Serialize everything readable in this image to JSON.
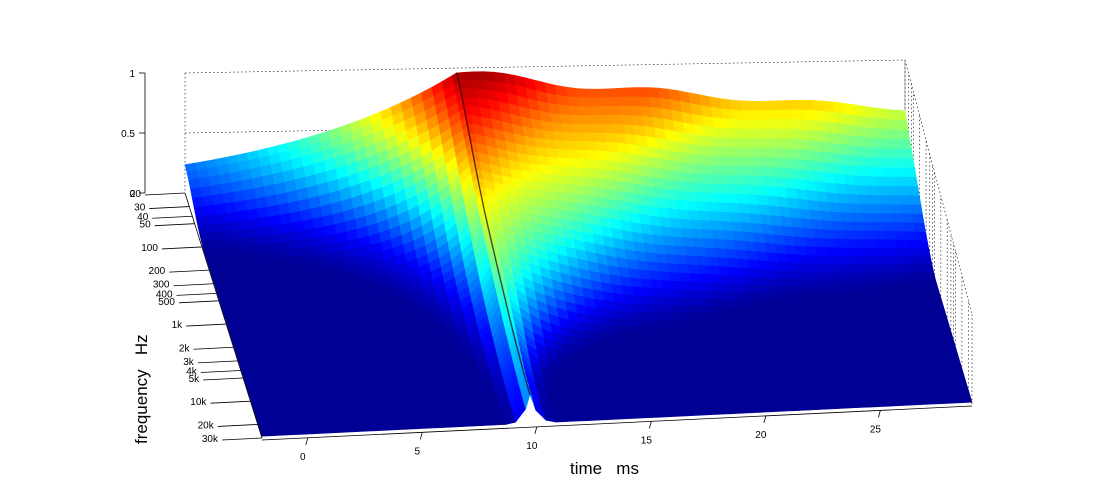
{
  "chart_data": {
    "type": "surface3d",
    "title": "",
    "view": "3d",
    "colormap": "jet",
    "grid": true,
    "xlabel": "time   ms",
    "ylabel": "frequency   Hz",
    "zlabel": "",
    "xlim": [
      -2,
      29
    ],
    "ylim": [
      20,
      30000
    ],
    "yscale": "log",
    "zlim": [
      0,
      1
    ],
    "x_ticks": [
      0,
      5,
      10,
      15,
      20,
      25
    ],
    "x_tick_labels": [
      "0",
      "5",
      "10",
      "15",
      "20",
      "25"
    ],
    "y_ticks": [
      20,
      30,
      40,
      50,
      100,
      200,
      300,
      400,
      500,
      1000,
      2000,
      3000,
      4000,
      5000,
      10000,
      20000,
      30000
    ],
    "y_tick_labels": [
      "20",
      "30",
      "40",
      "50",
      "100",
      "200",
      "300",
      "400",
      "500",
      "1k",
      "2k",
      "3k",
      "4k",
      "5k",
      "10k",
      "20k",
      "30k"
    ],
    "z_ticks": [
      0,
      0.5,
      1
    ],
    "z_tick_labels": [
      "0",
      "0.5",
      "1"
    ],
    "impulse_time_ms": 9.7,
    "surface_description": "Wavelet/cumulative spectral decay surface: energy rises toward the low-frequency edge and peaks near 1 at the impulse around 9.7 ms, with decaying ridges after the impulse."
  }
}
